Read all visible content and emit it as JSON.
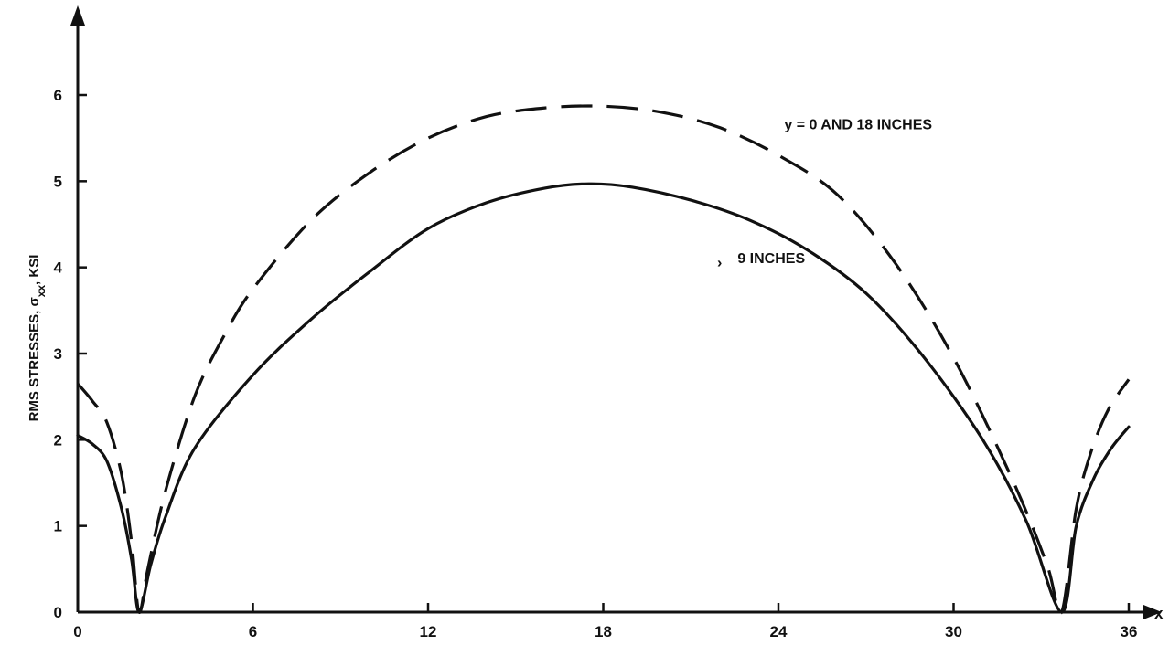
{
  "chart_data": {
    "type": "line",
    "ylabel": "RMS STRESSES, σxx, KSI",
    "xlabel": "x",
    "xlim": [
      0,
      36
    ],
    "ylim": [
      0,
      6
    ],
    "x_ticks": [
      0,
      6,
      12,
      18,
      24,
      30,
      36
    ],
    "y_ticks": [
      0,
      1,
      2,
      3,
      4,
      5,
      6
    ],
    "grid": false,
    "series": [
      {
        "name": "y = 0 AND 18 INCHES",
        "style": "dashed",
        "points": [
          [
            0,
            2.65
          ],
          [
            0.5,
            2.45
          ],
          [
            1.0,
            2.2
          ],
          [
            1.5,
            1.6
          ],
          [
            1.85,
            0.8
          ],
          [
            2.1,
            0.0
          ],
          [
            2.4,
            0.5
          ],
          [
            3.0,
            1.4
          ],
          [
            4.0,
            2.5
          ],
          [
            5.0,
            3.2
          ],
          [
            6.0,
            3.75
          ],
          [
            8.0,
            4.55
          ],
          [
            10.0,
            5.1
          ],
          [
            12.0,
            5.5
          ],
          [
            14.0,
            5.75
          ],
          [
            16.0,
            5.85
          ],
          [
            18.0,
            5.87
          ],
          [
            20.0,
            5.8
          ],
          [
            22.0,
            5.62
          ],
          [
            24.0,
            5.3
          ],
          [
            26.0,
            4.85
          ],
          [
            28.0,
            4.05
          ],
          [
            30.0,
            2.95
          ],
          [
            32.0,
            1.55
          ],
          [
            33.2,
            0.55
          ],
          [
            33.7,
            0.0
          ],
          [
            34.2,
            1.2
          ],
          [
            34.7,
            1.85
          ],
          [
            35.3,
            2.35
          ],
          [
            36.0,
            2.7
          ]
        ]
      },
      {
        "name": "9 INCHES",
        "style": "solid",
        "points": [
          [
            0,
            2.05
          ],
          [
            0.5,
            1.95
          ],
          [
            1.0,
            1.75
          ],
          [
            1.5,
            1.2
          ],
          [
            1.85,
            0.6
          ],
          [
            2.1,
            0.0
          ],
          [
            2.5,
            0.55
          ],
          [
            3.0,
            1.1
          ],
          [
            4.0,
            1.9
          ],
          [
            6.0,
            2.75
          ],
          [
            8.0,
            3.4
          ],
          [
            10.0,
            3.95
          ],
          [
            12.0,
            4.45
          ],
          [
            14.0,
            4.75
          ],
          [
            16.0,
            4.92
          ],
          [
            17.5,
            4.97
          ],
          [
            19.0,
            4.93
          ],
          [
            21.0,
            4.78
          ],
          [
            23.0,
            4.55
          ],
          [
            25.0,
            4.2
          ],
          [
            27.0,
            3.7
          ],
          [
            29.0,
            2.95
          ],
          [
            31.0,
            2.0
          ],
          [
            32.5,
            1.05
          ],
          [
            33.7,
            0.0
          ],
          [
            34.2,
            1.0
          ],
          [
            34.8,
            1.55
          ],
          [
            35.4,
            1.9
          ],
          [
            36.0,
            2.15
          ]
        ]
      }
    ],
    "annotations": [
      {
        "text": "y = 0 AND 18 INCHES",
        "x": 24.2,
        "y": 5.6
      },
      {
        "text": "9 INCHES",
        "x": 22.6,
        "y": 4.05
      },
      {
        "text": "›",
        "x": 21.9,
        "y": 4.0
      }
    ]
  }
}
